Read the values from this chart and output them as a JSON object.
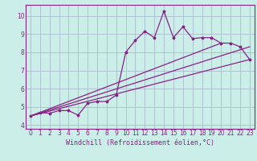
{
  "title": "",
  "xlabel": "Windchill (Refroidissement éolien,°C)",
  "background_color": "#cceee8",
  "grid_color": "#aabbcc",
  "line_color": "#882288",
  "xlim": [
    -0.5,
    23.5
  ],
  "ylim": [
    3.8,
    10.6
  ],
  "xticks": [
    0,
    1,
    2,
    3,
    4,
    5,
    6,
    7,
    8,
    9,
    10,
    11,
    12,
    13,
    14,
    15,
    16,
    17,
    18,
    19,
    20,
    21,
    22,
    23
  ],
  "yticks": [
    4,
    5,
    6,
    7,
    8,
    9,
    10
  ],
  "line1_x": [
    0,
    1,
    2,
    3,
    4,
    5,
    6,
    7,
    8,
    9,
    10,
    11,
    12,
    13,
    14,
    15,
    16,
    17,
    18,
    19,
    20,
    21,
    22,
    23
  ],
  "line1_y": [
    4.5,
    4.7,
    4.65,
    4.8,
    4.8,
    4.55,
    5.2,
    5.3,
    5.3,
    5.65,
    8.0,
    8.65,
    9.15,
    8.8,
    10.25,
    8.8,
    9.4,
    8.75,
    8.8,
    8.8,
    8.5,
    8.5,
    8.3,
    7.6
  ],
  "line2_x": [
    0,
    23
  ],
  "line2_y": [
    4.5,
    8.3
  ],
  "line3_x": [
    0,
    23
  ],
  "line3_y": [
    4.5,
    7.6
  ],
  "line4_x": [
    0,
    20
  ],
  "line4_y": [
    4.5,
    8.5
  ],
  "tick_fontsize": 5.5,
  "xlabel_fontsize": 6.0,
  "marker_size": 2.5
}
